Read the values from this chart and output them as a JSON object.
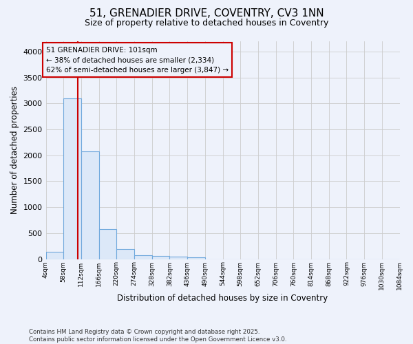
{
  "title": "51, GRENADIER DRIVE, COVENTRY, CV3 1NN",
  "subtitle": "Size of property relative to detached houses in Coventry",
  "xlabel": "Distribution of detached houses by size in Coventry",
  "ylabel": "Number of detached properties",
  "bin_edges": [
    4,
    58,
    112,
    166,
    220,
    274,
    328,
    382,
    436,
    490,
    544,
    598,
    652,
    706,
    760,
    814,
    868,
    922,
    976,
    1030,
    1084
  ],
  "bar_values": [
    140,
    3100,
    2080,
    580,
    195,
    75,
    55,
    45,
    30,
    0,
    0,
    0,
    0,
    0,
    0,
    0,
    0,
    0,
    0,
    0
  ],
  "bar_color": "#dce8f8",
  "bar_edge_color": "#6fa8dc",
  "property_size": 101,
  "annotation_line1": "51 GRENADIER DRIVE: 101sqm",
  "annotation_line2": "← 38% of detached houses are smaller (2,334)",
  "annotation_line3": "62% of semi-detached houses are larger (3,847) →",
  "vline_color": "#cc0000",
  "annotation_box_color": "#cc0000",
  "ylim": [
    0,
    4200
  ],
  "yticks": [
    0,
    500,
    1000,
    1500,
    2000,
    2500,
    3000,
    3500,
    4000
  ],
  "background_color": "#eef2fb",
  "plot_bg_color": "#eef2fb",
  "grid_color": "#cccccc",
  "footer_line1": "Contains HM Land Registry data © Crown copyright and database right 2025.",
  "footer_line2": "Contains public sector information licensed under the Open Government Licence v3.0."
}
